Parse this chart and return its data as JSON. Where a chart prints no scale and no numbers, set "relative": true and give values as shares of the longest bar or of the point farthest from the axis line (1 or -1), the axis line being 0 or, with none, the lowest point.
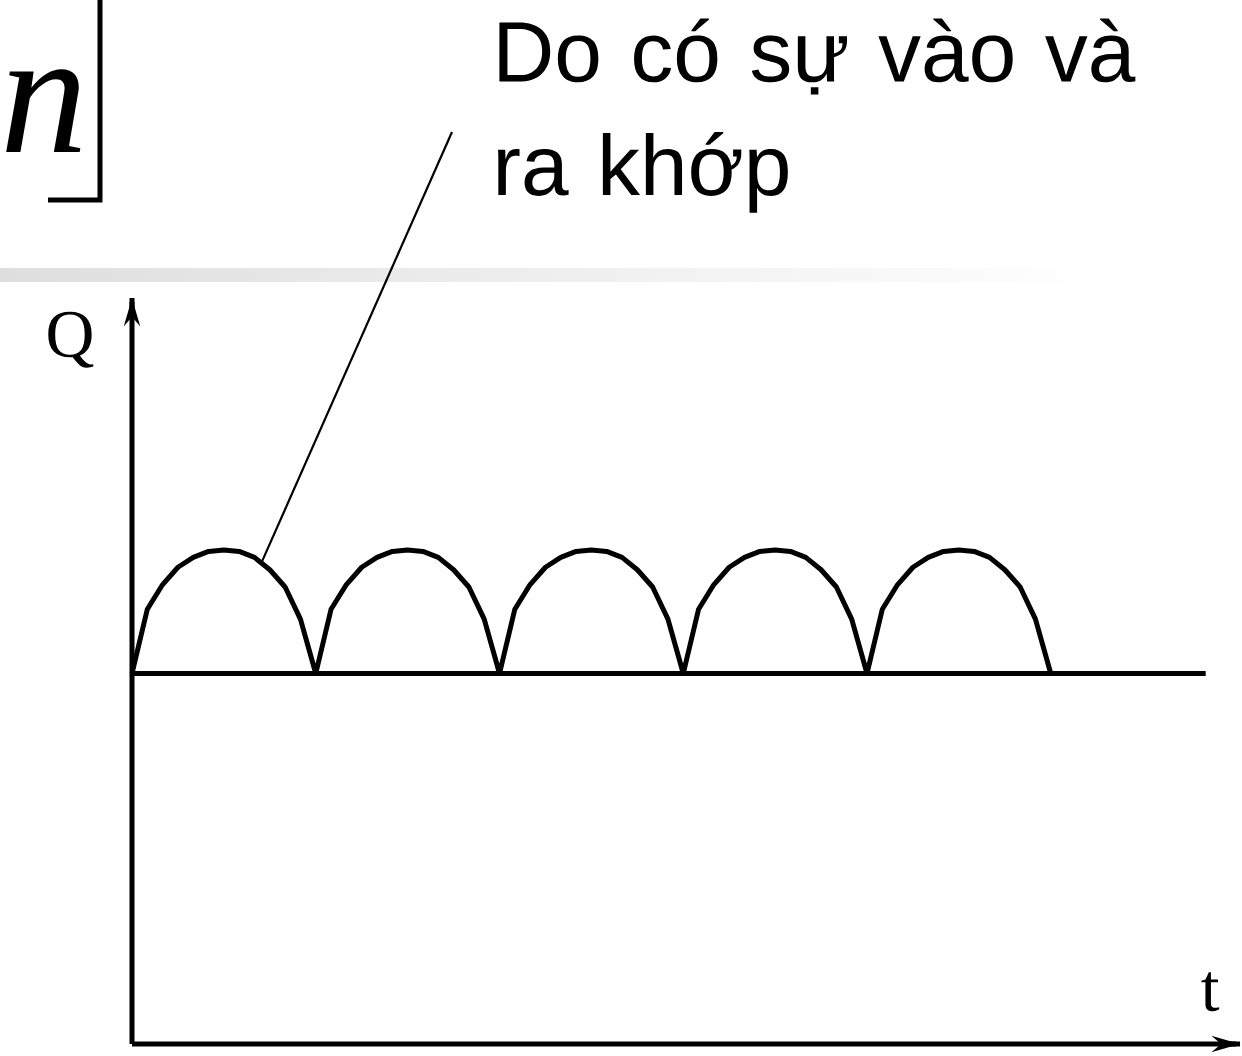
{
  "chart_data": {
    "type": "line",
    "relative": true,
    "categories": [
      null,
      null,
      null,
      null,
      null,
      null,
      null,
      null,
      null,
      null,
      null,
      null,
      null,
      null,
      null,
      null,
      null,
      null,
      null,
      null,
      null,
      null,
      null,
      null,
      null,
      null,
      null,
      null,
      null,
      null,
      null,
      null,
      null,
      null,
      null,
      null,
      null,
      null,
      null,
      null,
      null,
      null,
      null,
      null,
      null,
      null,
      null,
      null,
      null,
      null,
      null,
      null,
      null,
      null,
      null,
      null,
      null,
      null,
      null,
      null,
      null
    ],
    "series": [
      {
        "color": "#000000",
        "values": [
          0.75,
          0.88,
          0.93,
          0.965,
          0.985,
          0.997,
          1,
          0.997,
          0.985,
          0.96,
          0.925,
          0.86,
          0.75,
          0.88,
          0.93,
          0.965,
          0.985,
          0.997,
          1,
          0.997,
          0.985,
          0.96,
          0.925,
          0.86,
          0.75,
          0.88,
          0.93,
          0.965,
          0.985,
          0.997,
          1,
          0.997,
          0.985,
          0.96,
          0.925,
          0.86,
          0.75,
          0.88,
          0.93,
          0.965,
          0.985,
          0.997,
          1,
          0.997,
          0.985,
          0.96,
          0.925,
          0.86,
          0.75,
          0.88,
          0.93,
          0.965,
          0.985,
          0.997,
          1,
          0.997,
          0.985,
          0.96,
          0.925,
          0.86,
          0.75
        ]
      }
    ],
    "xlabel": "t",
    "ylabel": "Q",
    "ref_lines": [
      {
        "axis": "y",
        "value": 0.75
      }
    ],
    "annotations": [
      "Do có sự vào và ra khớp",
      "n"
    ]
  }
}
